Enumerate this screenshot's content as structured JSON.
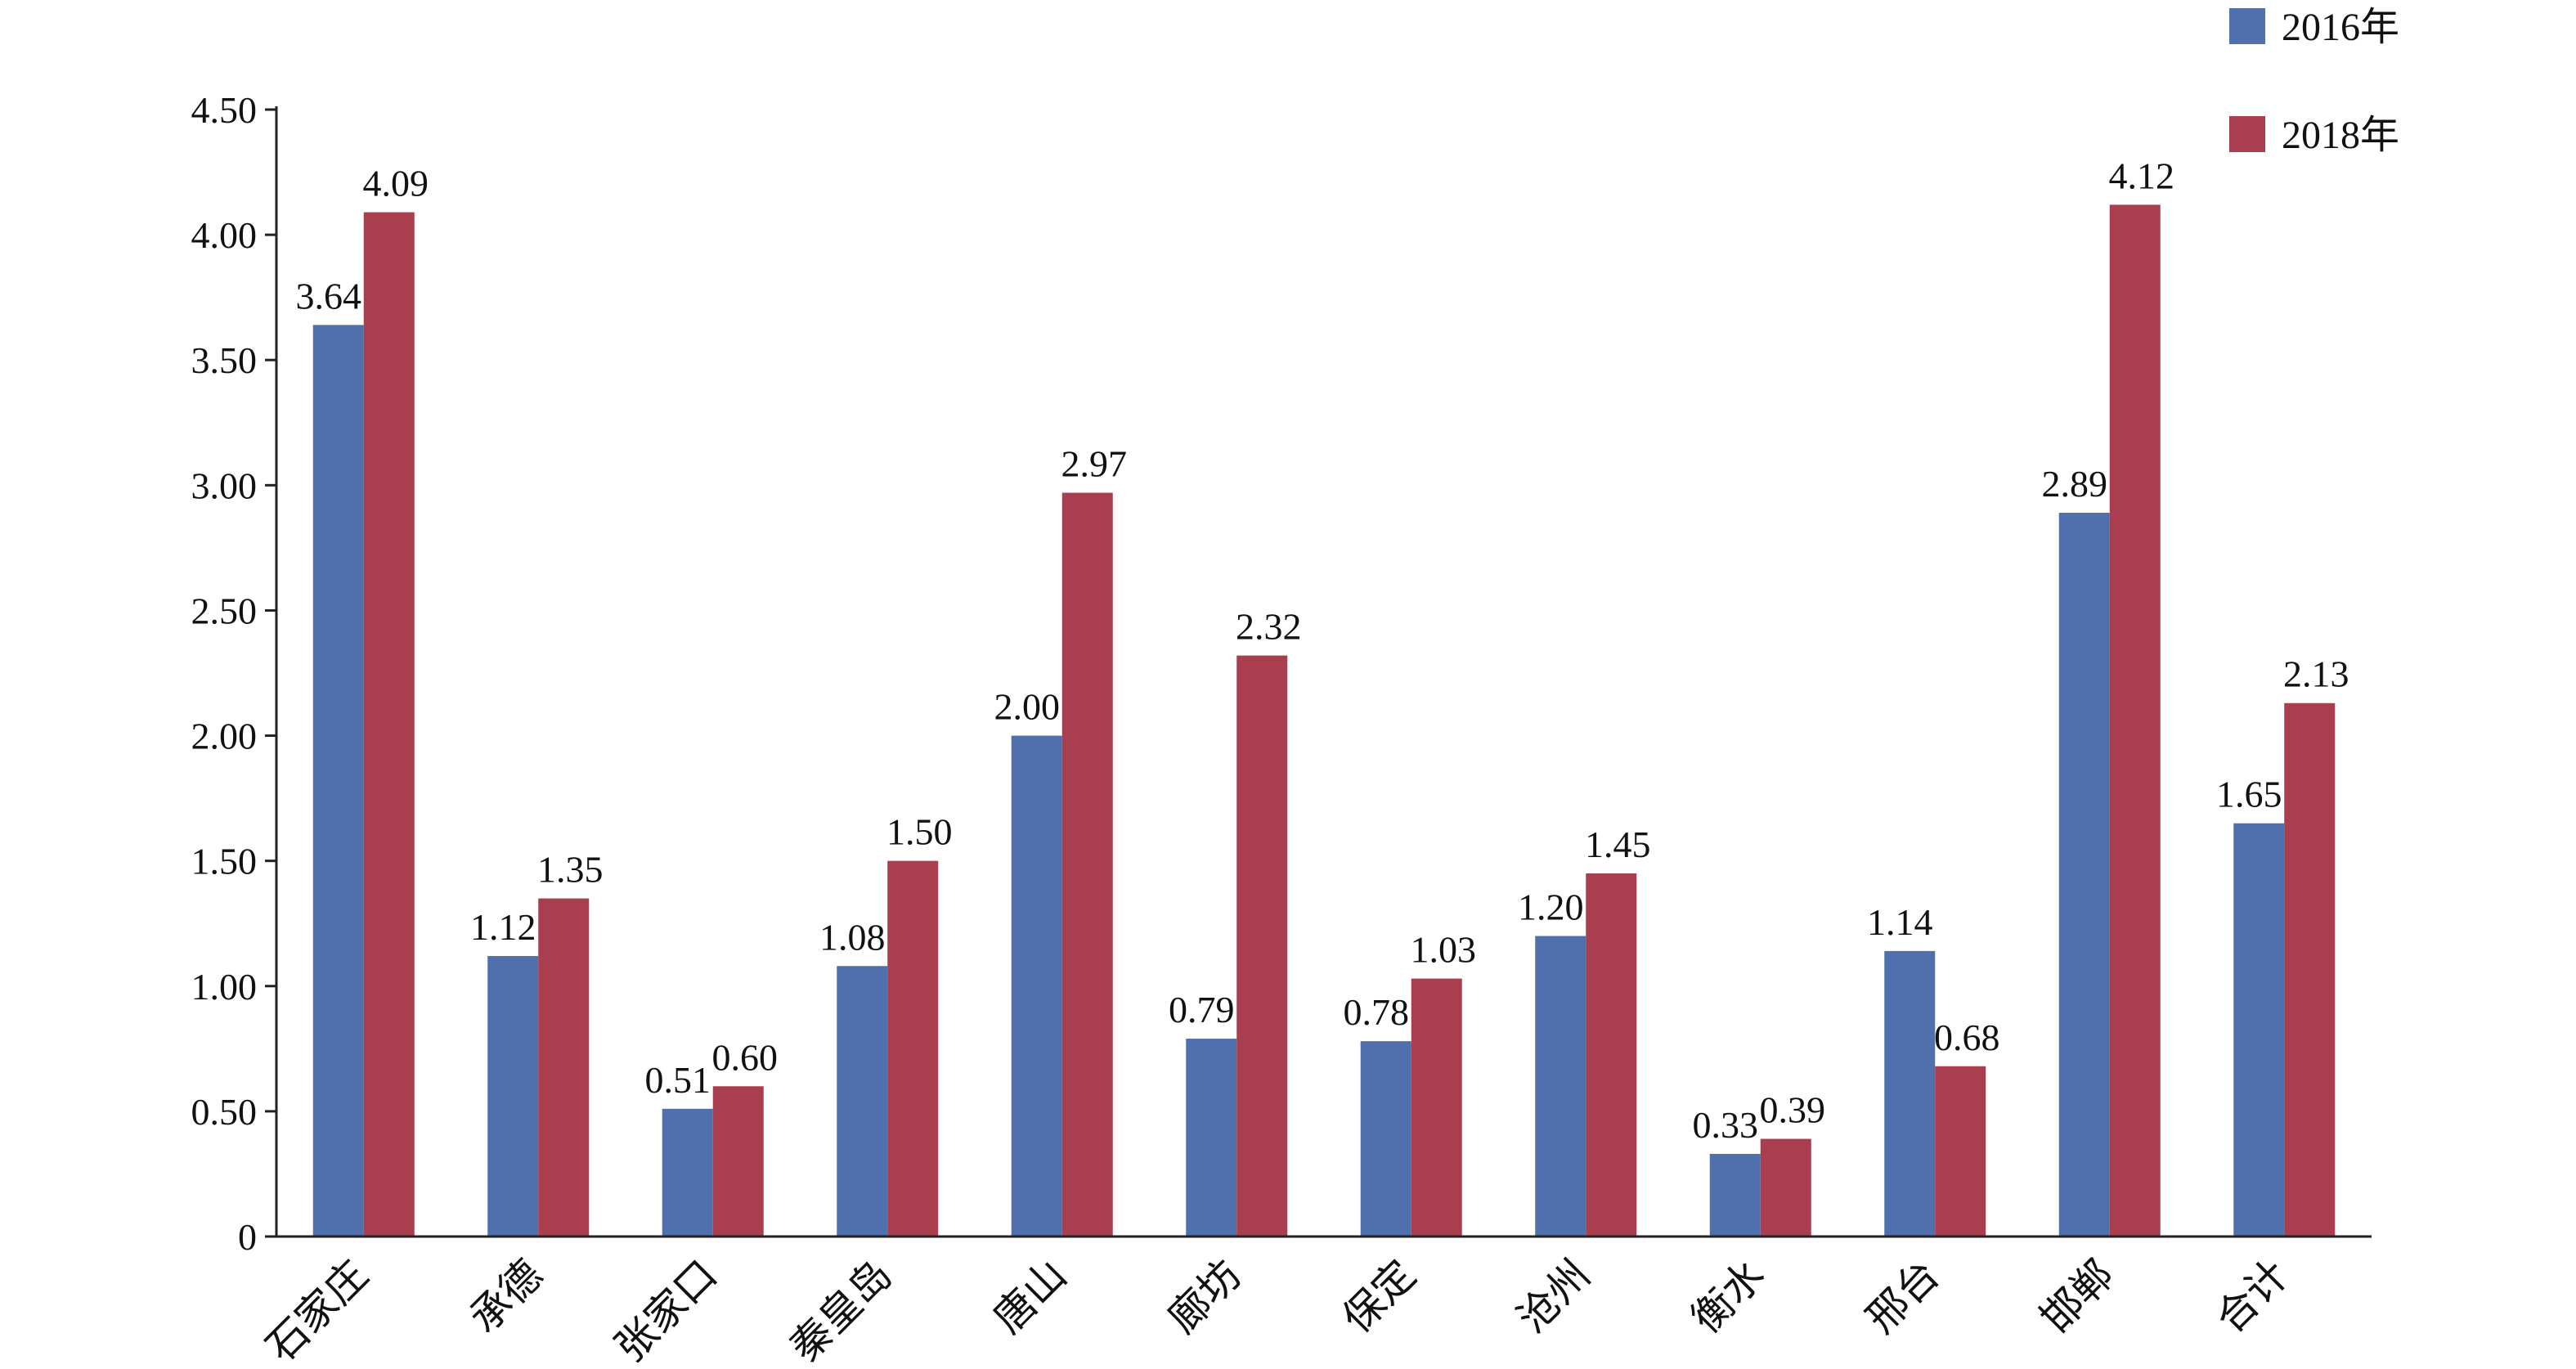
{
  "chart_data": {
    "type": "bar",
    "title": "",
    "xlabel": "",
    "ylabel": "",
    "ylim": [
      0,
      4.5
    ],
    "y_ticks": [
      "0",
      "0.50",
      "1.00",
      "1.50",
      "2.00",
      "2.50",
      "3.00",
      "3.50",
      "4.00",
      "4.50"
    ],
    "categories": [
      "石家庄",
      "承德",
      "张家口",
      "秦皇岛",
      "唐山",
      "廊坊",
      "保定",
      "沧州",
      "衡水",
      "邢台",
      "邯郸",
      "合计"
    ],
    "series": [
      {
        "name": "2016年",
        "color": "#4f6fad",
        "values": [
          3.64,
          1.12,
          0.51,
          1.08,
          2.0,
          0.79,
          0.78,
          1.2,
          0.33,
          1.14,
          2.89,
          1.65
        ],
        "labels": [
          "3.64",
          "1.12",
          "0.51",
          "1.08",
          "2.00",
          "0.79",
          "0.78",
          "1.20",
          "0.33",
          "1.14",
          "2.89",
          "1.65"
        ]
      },
      {
        "name": "2018年",
        "color": "#a93f4e",
        "values": [
          4.09,
          1.35,
          0.6,
          1.5,
          2.97,
          2.32,
          1.03,
          1.45,
          0.39,
          0.68,
          4.12,
          2.13
        ],
        "labels": [
          "4.09",
          "1.35",
          "0.60",
          "1.50",
          "2.97",
          "2.32",
          "1.03",
          "1.45",
          "0.39",
          "0.68",
          "4.12",
          "2.13"
        ]
      }
    ],
    "grid": false,
    "legend": "top-right"
  }
}
